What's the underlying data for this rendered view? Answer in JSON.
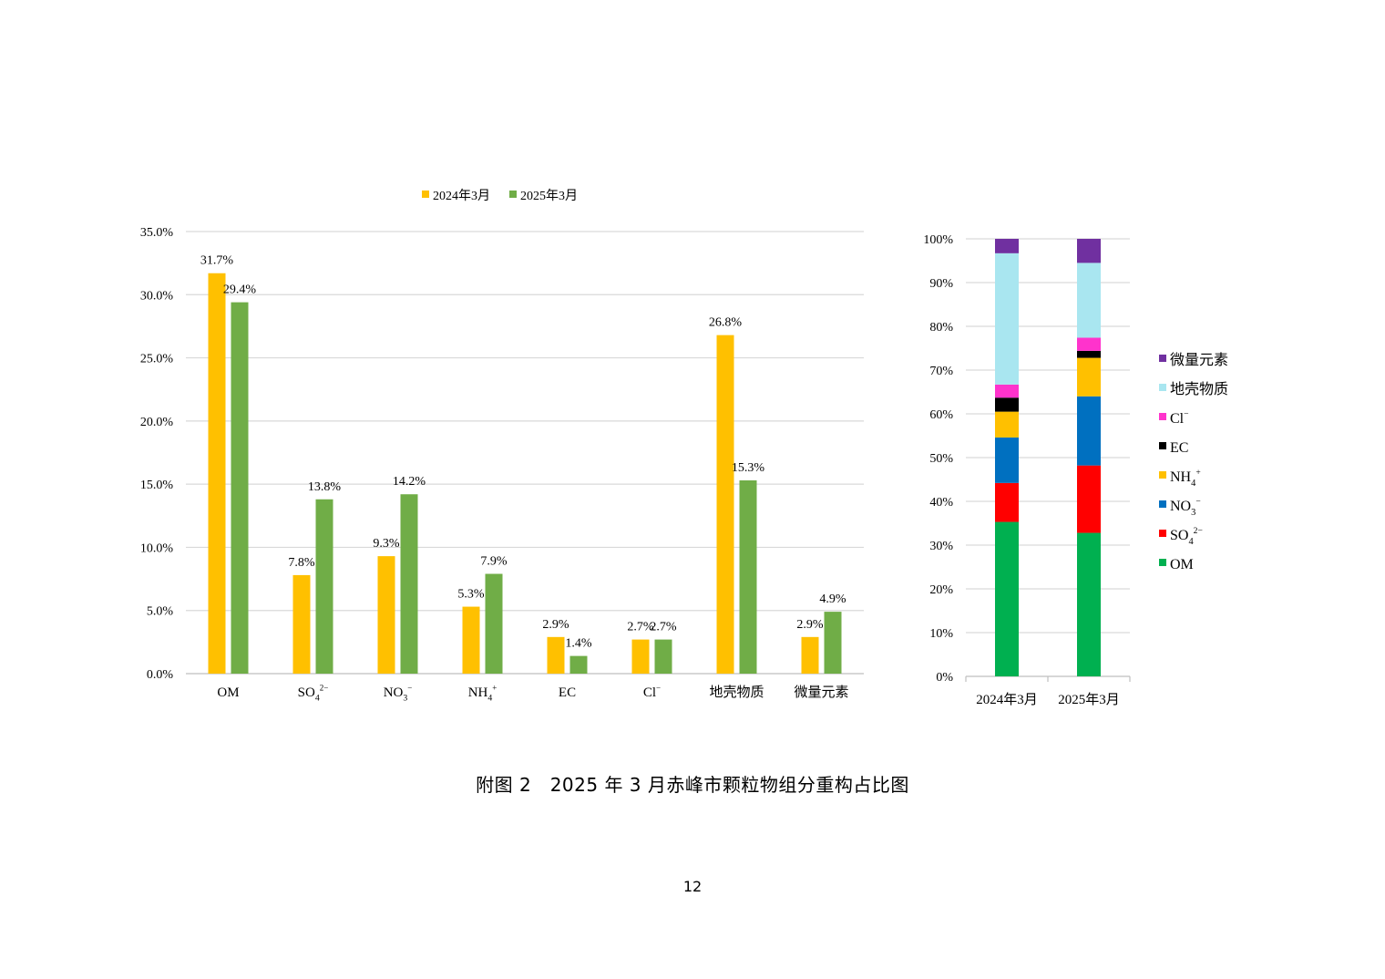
{
  "chart_data": [
    {
      "type": "bar",
      "categories": [
        "OM",
        "SO4",
        "NO3",
        "NH4",
        "EC",
        "Cl",
        "地壳物质",
        "微量元素"
      ],
      "category_labels": [
        {
          "base": "OM",
          "sub": "",
          "sup": ""
        },
        {
          "base": "SO",
          "sub": "4",
          "sup": "2−"
        },
        {
          "base": "NO",
          "sub": "3",
          "sup": "−"
        },
        {
          "base": "NH",
          "sub": "4",
          "sup": "+"
        },
        {
          "base": "EC",
          "sub": "",
          "sup": ""
        },
        {
          "base": "Cl",
          "sub": "",
          "sup": "−"
        },
        {
          "base": "地壳物质",
          "sub": "",
          "sup": ""
        },
        {
          "base": "微量元素",
          "sub": "",
          "sup": ""
        }
      ],
      "series": [
        {
          "name": "2024年3月",
          "color": "#FFC000",
          "values": [
            31.7,
            7.8,
            9.3,
            5.3,
            2.9,
            2.7,
            26.8,
            2.9
          ],
          "labels": [
            "31.7%",
            "7.8%",
            "9.3%",
            "5.3%",
            "2.9%",
            "2.7%",
            "26.8%",
            "2.9%"
          ]
        },
        {
          "name": "2025年3月",
          "color": "#70AD47",
          "values": [
            29.4,
            13.8,
            14.2,
            7.9,
            1.4,
            2.7,
            15.3,
            4.9
          ],
          "labels": [
            "29.4%",
            "13.8%",
            "14.2%",
            "7.9%",
            "1.4%",
            "2.7%",
            "15.3%",
            "4.9%"
          ]
        }
      ],
      "ylim": [
        0,
        35
      ],
      "yticks": [
        "0.0%",
        "5.0%",
        "10.0%",
        "15.0%",
        "20.0%",
        "25.0%",
        "30.0%",
        "35.0%"
      ],
      "grid": true,
      "legend_position": "top-center"
    },
    {
      "type": "bar",
      "stacked": true,
      "percent": true,
      "categories": [
        "2024年3月",
        "2025年3月"
      ],
      "series": [
        {
          "name": "OM",
          "color": "#00B050",
          "values": [
            35.3,
            32.8
          ]
        },
        {
          "name": "SO4",
          "color": "#FF0000",
          "values": [
            8.9,
            15.4
          ]
        },
        {
          "name": "NO3",
          "color": "#0070C0",
          "values": [
            10.4,
            15.8
          ]
        },
        {
          "name": "NH4",
          "color": "#FFC000",
          "values": [
            5.9,
            8.8
          ]
        },
        {
          "name": "EC",
          "color": "#000000",
          "values": [
            3.2,
            1.6
          ]
        },
        {
          "name": "Cl",
          "color": "#FF33CC",
          "values": [
            3.0,
            3.0
          ]
        },
        {
          "name": "地壳物质",
          "color": "#A9E6F0",
          "values": [
            30.0,
            17.1
          ]
        },
        {
          "name": "微量元素",
          "color": "#7030A0",
          "values": [
            3.3,
            5.5
          ]
        }
      ],
      "legend_labels": [
        {
          "base": "微量元素",
          "sub": "",
          "sup": ""
        },
        {
          "base": "地壳物质",
          "sub": "",
          "sup": ""
        },
        {
          "base": "Cl",
          "sub": "",
          "sup": "−"
        },
        {
          "base": "EC",
          "sub": "",
          "sup": ""
        },
        {
          "base": "NH",
          "sub": "4",
          "sup": "+"
        },
        {
          "base": "NO",
          "sub": "3",
          "sup": "−"
        },
        {
          "base": "SO",
          "sub": "4",
          "sup": "2−"
        },
        {
          "base": "OM",
          "sub": "",
          "sup": ""
        }
      ],
      "ylim": [
        0,
        100
      ],
      "yticks": [
        "0%",
        "10%",
        "20%",
        "30%",
        "40%",
        "50%",
        "60%",
        "70%",
        "80%",
        "90%",
        "100%"
      ],
      "grid": true,
      "legend_position": "right"
    }
  ],
  "caption": "附图 2　2025 年 3 月赤峰市颗粒物组分重构占比图",
  "page_number": "12"
}
